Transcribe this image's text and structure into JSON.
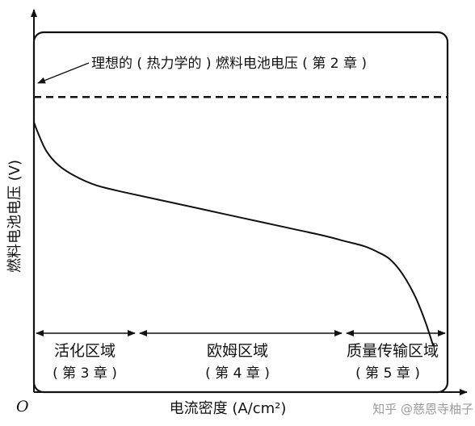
{
  "chart_data": {
    "type": "line",
    "title": "",
    "xlabel": "电流密度 (A/cm²)",
    "ylabel": "燃料电池电压 (V)",
    "origin_label": "O",
    "xlim": [
      0,
      1
    ],
    "ylim": [
      0,
      1
    ],
    "grid": false,
    "ideal_line": {
      "label": "理想的 ( 热力学的 ) 燃料电池电压 ( 第 2 章 )",
      "y": 0.82,
      "style": "dashed"
    },
    "series": [
      {
        "name": "",
        "x": [
          0.0,
          0.01,
          0.03,
          0.06,
          0.1,
          0.15,
          0.22,
          0.3,
          0.4,
          0.5,
          0.6,
          0.7,
          0.75,
          0.8,
          0.83,
          0.86,
          0.89,
          0.92,
          0.945,
          0.965
        ],
        "y": [
          0.75,
          0.72,
          0.67,
          0.63,
          0.6,
          0.575,
          0.555,
          0.535,
          0.51,
          0.485,
          0.46,
          0.435,
          0.42,
          0.405,
          0.39,
          0.37,
          0.33,
          0.27,
          0.2,
          0.13
        ]
      }
    ],
    "regions": [
      {
        "name": "活化区域",
        "chapter": "( 第 3 章 )",
        "x_start": 0.0,
        "x_end": 0.25
      },
      {
        "name": "欧姆区域",
        "chapter": "( 第 4 章 )",
        "x_start": 0.25,
        "x_end": 0.75
      },
      {
        "name": "质量传输区域",
        "chapter": "( 第 5 章 )",
        "x_start": 0.75,
        "x_end": 1.0
      }
    ]
  },
  "watermark": "知乎 @慈恩寺柚子"
}
